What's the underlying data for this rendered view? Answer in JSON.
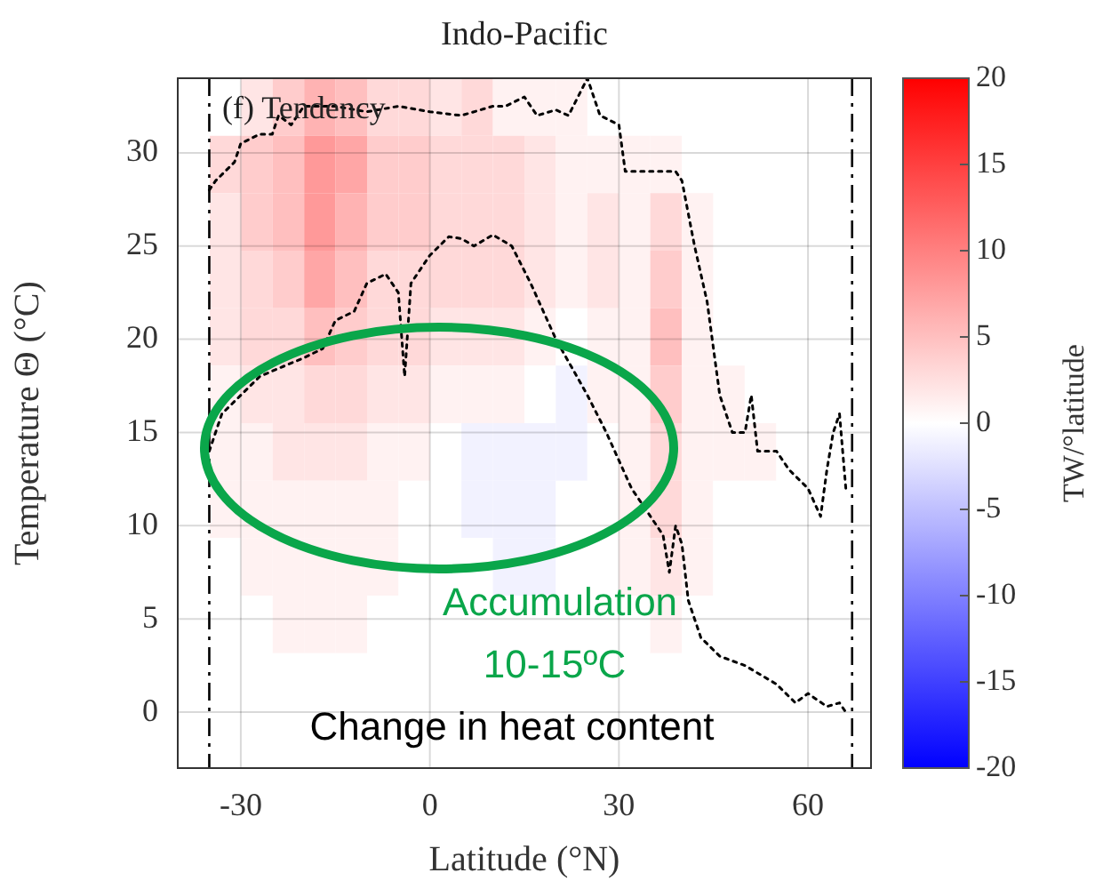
{
  "chart_data": [
    {
      "type": "heatmap",
      "clabel": "TW/°latitude",
      "categories": [
        null,
        null,
        null,
        null,
        null,
        null,
        null,
        null,
        null,
        null,
        null,
        null,
        null,
        null,
        null,
        null,
        null,
        null,
        null,
        null
      ],
      "y_categories": [
        null,
        null,
        null,
        null,
        null,
        null,
        null,
        null,
        null,
        null,
        null,
        null
      ],
      "cells": [
        [
          null,
          2,
          4,
          6,
          5,
          3,
          3,
          2,
          3,
          1,
          1,
          1,
          null,
          null,
          null,
          null,
          null,
          null,
          null,
          null
        ],
        [
          3,
          4,
          5,
          8,
          7,
          4,
          4,
          3,
          3,
          3,
          2,
          1,
          1,
          1,
          1,
          null,
          null,
          null,
          null,
          null
        ],
        [
          2,
          4,
          5,
          8,
          6,
          4,
          4,
          3,
          3,
          3,
          2,
          1,
          2,
          1,
          3,
          1,
          null,
          null,
          null,
          null
        ],
        [
          2,
          3,
          4,
          7,
          5,
          3,
          3,
          3,
          3,
          3,
          2,
          1,
          2,
          1,
          4,
          1,
          null,
          null,
          null,
          null
        ],
        [
          2,
          3,
          3,
          5,
          4,
          3,
          3,
          2,
          2,
          2,
          1,
          0,
          1,
          1,
          5,
          1,
          null,
          null,
          null,
          null
        ],
        [
          1,
          2,
          2,
          3,
          3,
          2,
          2,
          1,
          1,
          1,
          0,
          -1,
          1,
          1,
          4,
          1,
          1,
          null,
          null,
          null
        ],
        [
          1,
          1,
          2,
          2,
          2,
          1,
          1,
          0,
          -1,
          -1,
          -1,
          -1,
          0,
          1,
          3,
          1,
          1,
          1,
          null,
          null
        ],
        [
          1,
          1,
          1,
          1,
          1,
          1,
          0,
          0,
          -1,
          -1,
          -1,
          0,
          0,
          1,
          3,
          1,
          0,
          0,
          0,
          0
        ],
        [
          0,
          1,
          1,
          1,
          1,
          1,
          0,
          0,
          0,
          -1,
          -1,
          0,
          0,
          1,
          2,
          1,
          0,
          0,
          0,
          0
        ],
        [
          0,
          0,
          1,
          1,
          1,
          0,
          0,
          0,
          0,
          0,
          0,
          0,
          0,
          0,
          1,
          0,
          0,
          0,
          0,
          0
        ],
        [
          0,
          0,
          0,
          0,
          0,
          0,
          0,
          0,
          0,
          0,
          0,
          0,
          0,
          0,
          0,
          0,
          0,
          0,
          0,
          0
        ],
        [
          0,
          0,
          0,
          0,
          0,
          0,
          0,
          0,
          0,
          0,
          0,
          0,
          0,
          0,
          0,
          0,
          0,
          0,
          0,
          0
        ]
      ],
      "clim": [
        -20,
        20
      ],
      "cticks": [
        -20,
        -15,
        -10,
        -5,
        0,
        5,
        10,
        15,
        20
      ]
    },
    {
      "type": "line",
      "title": "Indo-Pacific",
      "xlabel": "Latitude (°N)",
      "ylabel": "Temperature Θ (°C)",
      "xlim": [
        -40,
        70
      ],
      "ylim": [
        -3,
        34
      ],
      "xticks": [
        -30,
        0,
        30,
        60
      ],
      "yticks": [
        0,
        5,
        10,
        15,
        20,
        25,
        30
      ],
      "grid": true,
      "series": [
        {
          "type": "line",
          "color": "#000000",
          "line_style": "dotted",
          "marker": "none",
          "x": [
            -35,
            -34,
            -31,
            -30,
            -27,
            -25,
            -24,
            -22,
            -20,
            -15,
            -10,
            -5,
            0,
            5,
            10,
            12,
            15,
            17,
            20,
            22,
            25,
            27,
            30,
            31,
            35,
            39,
            40,
            42,
            44,
            46,
            48,
            50,
            51,
            52,
            55,
            57,
            60,
            62,
            63,
            64,
            65,
            66
          ],
          "values": [
            28,
            28.5,
            29.5,
            30.5,
            31,
            31,
            32,
            31.5,
            32.5,
            32.5,
            32.2,
            32.5,
            32.2,
            32,
            32.5,
            32.5,
            33,
            32,
            32.3,
            32,
            34,
            32,
            31.5,
            29,
            29,
            29,
            28.5,
            25,
            22,
            17,
            15,
            15,
            17,
            14,
            14,
            13,
            12,
            10.5,
            13,
            15,
            16,
            12
          ]
        },
        {
          "type": "line",
          "color": "#000000",
          "line_style": "dotted",
          "marker": "none",
          "x": [
            -35,
            -33,
            -30,
            -27,
            -25,
            -20,
            -17,
            -15,
            -12,
            -10,
            -7,
            -5,
            -4,
            -3,
            0,
            3,
            5,
            7,
            10,
            13,
            16,
            20,
            25,
            28,
            30,
            32,
            35,
            37,
            38,
            39,
            40,
            41,
            43,
            46,
            50,
            55,
            58,
            60,
            63,
            65,
            66
          ],
          "values": [
            14,
            16,
            17,
            18,
            18.3,
            19,
            19.5,
            21,
            21.5,
            23,
            23.5,
            22.5,
            18,
            23,
            24.5,
            25.5,
            25.4,
            25,
            25.6,
            25,
            23,
            20,
            17,
            15,
            13.5,
            12,
            10.5,
            9.5,
            7.5,
            10,
            9,
            6,
            4,
            3,
            2.5,
            1.5,
            0.5,
            1,
            0.3,
            0.5,
            0
          ]
        }
      ],
      "ref_lines": [
        {
          "axis": "x",
          "value": -35,
          "color": "#000000",
          "line_style": "dashed"
        },
        {
          "axis": "x",
          "value": 67,
          "color": "#000000",
          "line_style": "dashed"
        }
      ],
      "annotations": [
        "(f) Tendency",
        "Accumulation",
        "10-15ºC",
        "Change in heat content"
      ]
    }
  ]
}
